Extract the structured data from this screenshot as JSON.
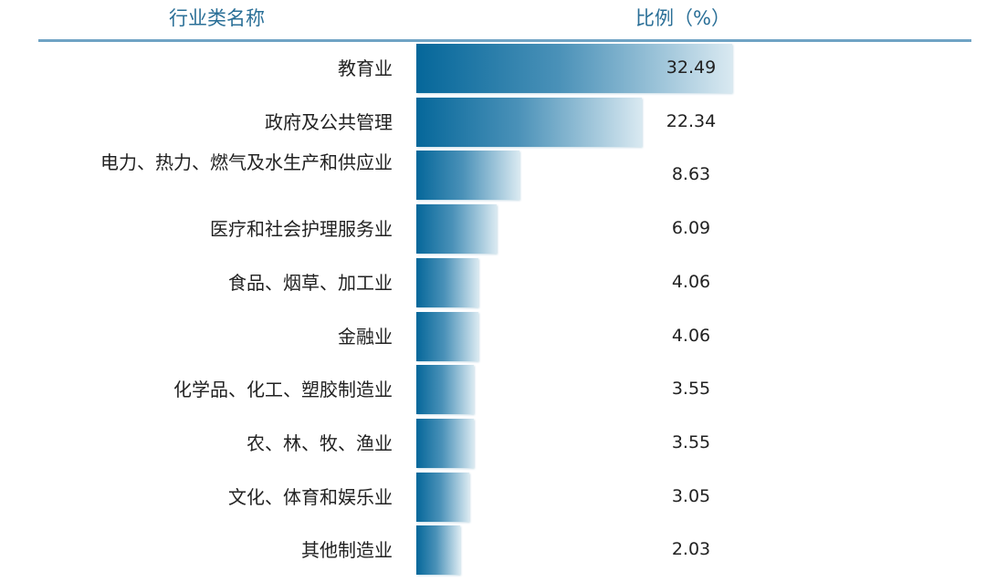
{
  "header": {
    "name_col": "行业类名称",
    "ratio_col": "比例（%）"
  },
  "chart_data": {
    "type": "bar",
    "orientation": "horizontal",
    "categories": [
      "教育业",
      "政府及公共管理",
      "电力、热力、燃气及水生产和供应业",
      "医疗和社会护理服务业",
      "食品、烟草、加工业",
      "金融业",
      "化学品、化工、塑胶制造业",
      "农、林、牧、渔业",
      "文化、体育和娱乐业",
      "其他制造业"
    ],
    "values": [
      32.49,
      22.34,
      8.63,
      6.09,
      4.06,
      4.06,
      3.55,
      3.55,
      3.05,
      2.03
    ],
    "value_labels": [
      "32.49",
      "22.34",
      "8.63",
      "6.09",
      "4.06",
      "4.06",
      "3.55",
      "3.55",
      "3.05",
      "2.03"
    ],
    "xlabel": "",
    "ylabel": "",
    "grid": false,
    "colors": {
      "bar_start": "#05679a",
      "bar_end": "#d9e9f1",
      "header": "#2a6f97"
    }
  }
}
